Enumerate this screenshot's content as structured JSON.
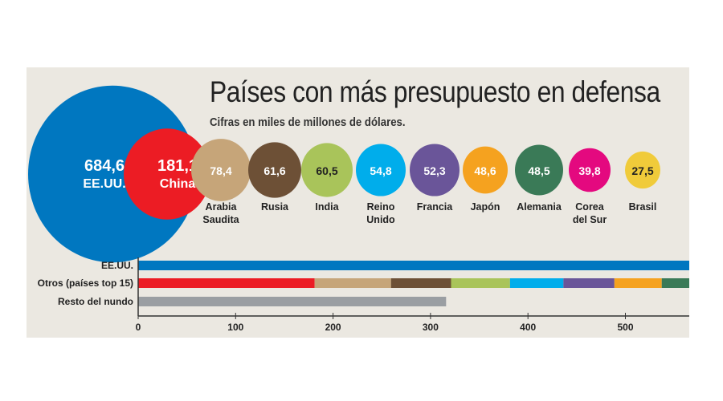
{
  "chart_data": [
    {
      "type": "bubble",
      "title": "Países con más presupuesto en defensa",
      "subtitle": "Cifras en miles de millones de dólares.",
      "items": [
        {
          "name": "EE.UU.",
          "value": 684.6,
          "label": "684,6",
          "color": "#0077c0",
          "text_color": "#ffffff"
        },
        {
          "name": "China",
          "value": 181.1,
          "label": "181,1",
          "color": "#ec1c24",
          "text_color": "#ffffff"
        },
        {
          "name": "Arabia Saudita",
          "value": 78.4,
          "label": "78,4",
          "color": "#c6a579",
          "text_color": "#ffffff"
        },
        {
          "name": "Rusia",
          "value": 61.6,
          "label": "61,6",
          "color": "#6d5036",
          "text_color": "#ffffff"
        },
        {
          "name": "India",
          "value": 60.5,
          "label": "60,5",
          "color": "#a9c45a",
          "text_color": "#222222"
        },
        {
          "name": "Reino Unido",
          "value": 54.8,
          "label": "54,8",
          "color": "#00adeb",
          "text_color": "#ffffff"
        },
        {
          "name": "Francia",
          "value": 52.3,
          "label": "52,3",
          "color": "#6a5599",
          "text_color": "#ffffff"
        },
        {
          "name": "Japón",
          "value": 48.6,
          "label": "48,6",
          "color": "#f5a21f",
          "text_color": "#ffffff"
        },
        {
          "name": "Alemania",
          "value": 48.5,
          "label": "48,5",
          "color": "#3a7a57",
          "text_color": "#ffffff"
        },
        {
          "name": "Corea del Sur",
          "value": 39.8,
          "label": "39,8",
          "color": "#e4097f",
          "text_color": "#ffffff"
        },
        {
          "name": "Brasil",
          "value": 27.5,
          "label": "27,5",
          "color": "#f0cb3a",
          "text_color": "#222222"
        }
      ]
    },
    {
      "type": "stacked-bar",
      "categories": [
        "EE.UU.",
        "Otros (países top 15)",
        "Resto del nundo"
      ],
      "series": [
        {
          "row": "EE.UU.",
          "segments": [
            {
              "name": "EE.UU.",
              "value": 684.6,
              "color": "#0077c0"
            }
          ]
        },
        {
          "row": "Otros (países top 15)",
          "segments": [
            {
              "name": "China",
              "value": 181.1,
              "color": "#ec1c24"
            },
            {
              "name": "Arabia Saudita",
              "value": 78.4,
              "color": "#c6a579"
            },
            {
              "name": "Rusia",
              "value": 61.6,
              "color": "#6d5036"
            },
            {
              "name": "India",
              "value": 60.5,
              "color": "#a9c45a"
            },
            {
              "name": "Reino Unido",
              "value": 54.8,
              "color": "#00adeb"
            },
            {
              "name": "Francia",
              "value": 52.3,
              "color": "#6a5599"
            },
            {
              "name": "Japón",
              "value": 48.6,
              "color": "#f5a21f"
            },
            {
              "name": "Alemania",
              "value": 48.5,
              "color": "#3a7a57"
            }
          ]
        },
        {
          "row": "Resto del nundo",
          "segments": [
            {
              "name": "Resto del mundo",
              "value": 316,
              "color": "#9a9ea2"
            }
          ]
        }
      ],
      "xticks": [
        "0",
        "100",
        "200",
        "300",
        "400",
        "500"
      ],
      "xtick_values": [
        0,
        100,
        200,
        300,
        400,
        500
      ],
      "xlim": [
        0,
        566
      ]
    }
  ]
}
